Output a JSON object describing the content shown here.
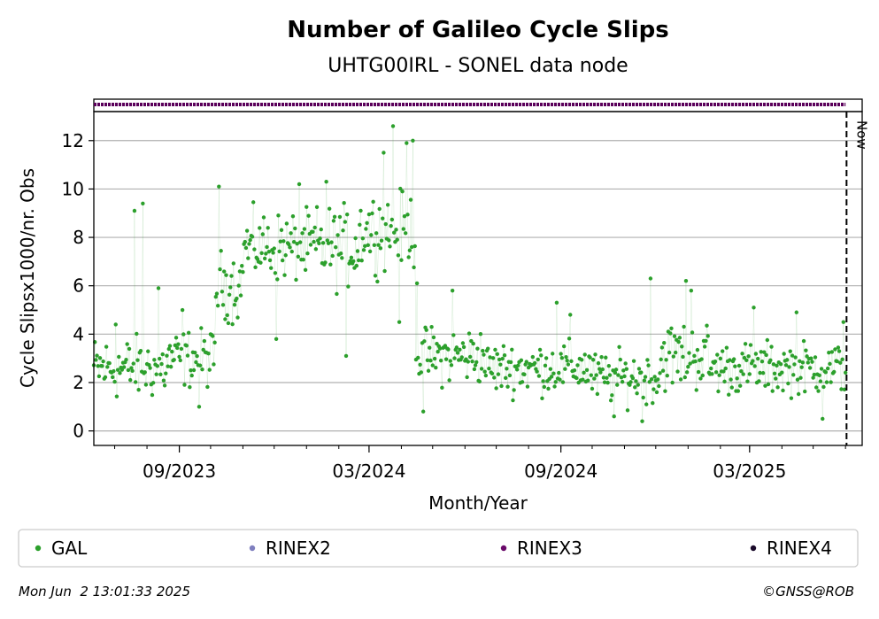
{
  "chart_data": {
    "type": "scatter",
    "title": "Number of Galileo Cycle Slips",
    "subtitle": "UHTG00IRL - SONEL data node",
    "xlabel": "Month/Year",
    "ylabel": "Cycle Slipsx1000/nr. Obs",
    "ylim": [
      -0.6,
      13.2
    ],
    "xlim": [
      "2023-06-11",
      "2025-06-17"
    ],
    "x_ticks": [
      {
        "date": "2023-09-01",
        "label": "09/2023"
      },
      {
        "date": "2024-03-01",
        "label": "03/2024"
      },
      {
        "date": "2024-09-01",
        "label": "09/2024"
      },
      {
        "date": "2025-03-01",
        "label": "03/2025"
      }
    ],
    "y_ticks": [
      0,
      2,
      4,
      6,
      8,
      10,
      12
    ],
    "grid": "horizontal",
    "now_line": {
      "date": "2025-06-02",
      "label": "Now"
    },
    "rinex_availability": {
      "series": "RINEX3",
      "start": "2023-06-11",
      "end": "2025-06-01"
    },
    "legend_position": "bottom",
    "series": [
      {
        "name": "GAL",
        "color": "#2ca02c",
        "segments": [
          {
            "start": "2023-06-11",
            "end": "2023-08-20",
            "mean": 2.6,
            "spread": 1.1,
            "outliers": [
              {
                "date": "2023-07-20",
                "value": 9.1
              },
              {
                "date": "2023-07-28",
                "value": 9.4
              },
              {
                "date": "2023-08-12",
                "value": 5.9
              },
              {
                "date": "2023-07-02",
                "value": 4.4
              }
            ]
          },
          {
            "start": "2023-08-21",
            "end": "2023-10-05",
            "mean": 3.0,
            "spread": 1.0,
            "outliers": [
              {
                "date": "2023-09-04",
                "value": 5.0
              },
              {
                "date": "2023-09-20",
                "value": 1.0
              }
            ]
          },
          {
            "start": "2023-10-06",
            "end": "2023-10-31",
            "mean": 6.0,
            "spread": 1.2,
            "outliers": [
              {
                "date": "2023-10-09",
                "value": 10.1
              }
            ]
          },
          {
            "start": "2023-11-01",
            "end": "2024-01-05",
            "mean": 7.6,
            "spread": 1.2,
            "outliers": [
              {
                "date": "2023-12-25",
                "value": 10.2
              },
              {
                "date": "2023-12-03",
                "value": 3.8
              }
            ]
          },
          {
            "start": "2024-01-06",
            "end": "2024-02-20",
            "mean": 7.6,
            "spread": 1.4,
            "outliers": [
              {
                "date": "2024-01-20",
                "value": 10.3
              },
              {
                "date": "2024-02-08",
                "value": 3.1
              }
            ]
          },
          {
            "start": "2024-02-21",
            "end": "2024-04-14",
            "mean": 8.3,
            "spread": 1.3,
            "outliers": [
              {
                "date": "2024-03-24",
                "value": 12.6
              },
              {
                "date": "2024-03-15",
                "value": 11.5
              },
              {
                "date": "2024-04-06",
                "value": 11.9
              },
              {
                "date": "2024-04-12",
                "value": 12.0
              },
              {
                "date": "2024-03-30",
                "value": 4.5
              }
            ]
          },
          {
            "start": "2024-04-15",
            "end": "2024-06-20",
            "mean": 3.1,
            "spread": 1.0,
            "outliers": [
              {
                "date": "2024-04-16",
                "value": 6.1
              },
              {
                "date": "2024-04-22",
                "value": 0.8
              },
              {
                "date": "2024-05-20",
                "value": 5.8
              }
            ]
          },
          {
            "start": "2024-06-21",
            "end": "2024-09-30",
            "mean": 2.6,
            "spread": 0.9,
            "outliers": [
              {
                "date": "2024-08-28",
                "value": 5.3
              },
              {
                "date": "2024-09-10",
                "value": 4.8
              }
            ]
          },
          {
            "start": "2024-10-01",
            "end": "2024-12-05",
            "mean": 2.2,
            "spread": 0.9,
            "outliers": [
              {
                "date": "2024-11-26",
                "value": 6.3
              },
              {
                "date": "2024-10-22",
                "value": 0.6
              },
              {
                "date": "2024-11-18",
                "value": 0.4
              }
            ]
          },
          {
            "start": "2024-12-06",
            "end": "2025-01-20",
            "mean": 3.1,
            "spread": 1.2,
            "outliers": [
              {
                "date": "2024-12-30",
                "value": 6.2
              },
              {
                "date": "2025-01-04",
                "value": 5.8
              }
            ]
          },
          {
            "start": "2025-01-21",
            "end": "2025-06-01",
            "mean": 2.6,
            "spread": 0.9,
            "outliers": [
              {
                "date": "2025-03-05",
                "value": 5.1
              },
              {
                "date": "2025-04-15",
                "value": 4.9
              },
              {
                "date": "2025-05-30",
                "value": 4.5
              },
              {
                "date": "2025-05-10",
                "value": 0.5
              }
            ]
          }
        ]
      }
    ],
    "legend": [
      {
        "label": "GAL",
        "color": "#2ca02c"
      },
      {
        "label": "RINEX2",
        "color": "#7f7fbf"
      },
      {
        "label": "RINEX3",
        "color": "#6a0a6a"
      },
      {
        "label": "RINEX4",
        "color": "#1a0a2a"
      }
    ]
  },
  "footer": {
    "timestamp": "Mon Jun  2 13:01:33 2025",
    "copyright": "©GNSS@ROB"
  }
}
